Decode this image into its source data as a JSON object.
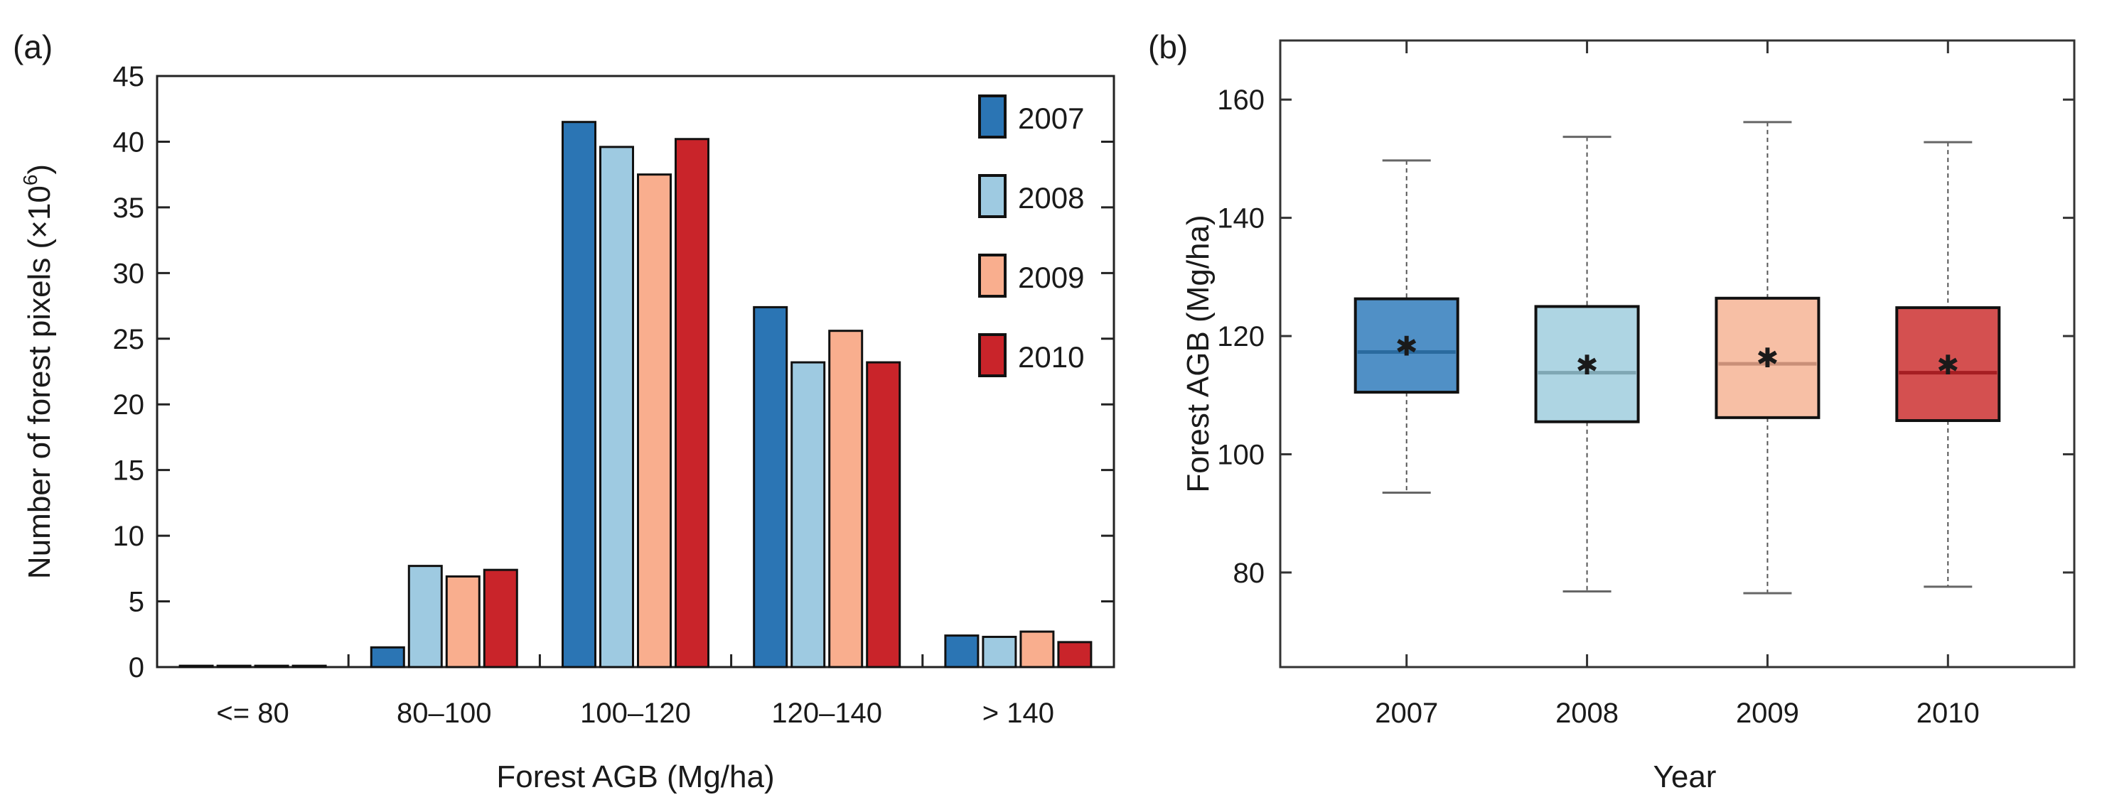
{
  "chart_data": [
    {
      "panel_label": "(a)",
      "type": "bar",
      "title": "",
      "xlabel": "Forest AGB (Mg/ha)",
      "ylabel": "Number of forest pixels (×10",
      "ylabel_superscript": "6",
      "ylabel_suffix": ")",
      "categories": [
        "<= 80",
        "80–100",
        "100–120",
        "120–140",
        "> 140"
      ],
      "ylim": [
        0,
        45
      ],
      "yticks": [
        0,
        5,
        10,
        15,
        20,
        25,
        30,
        35,
        40,
        45
      ],
      "legend_position": "top-right",
      "series": [
        {
          "name": "2007",
          "color": "#2b75b4",
          "values": [
            0.1,
            1.5,
            41.5,
            27.4,
            2.4
          ]
        },
        {
          "name": "2008",
          "color": "#9ecae1",
          "values": [
            0.1,
            7.7,
            39.6,
            23.2,
            2.3
          ]
        },
        {
          "name": "2009",
          "color": "#f9ae8e",
          "values": [
            0.1,
            6.9,
            37.5,
            25.6,
            2.7
          ]
        },
        {
          "name": "2010",
          "color": "#c9242a",
          "values": [
            0.1,
            7.4,
            40.2,
            23.2,
            1.9
          ]
        }
      ]
    },
    {
      "panel_label": "(b)",
      "type": "box",
      "title": "",
      "xlabel": "Year",
      "ylabel": "Forest AGB (Mg/ha)",
      "ylim": [
        64,
        170
      ],
      "yticks": [
        80,
        100,
        120,
        140,
        160
      ],
      "categories": [
        "2007",
        "2008",
        "2009",
        "2010"
      ],
      "boxes": [
        {
          "name": "2007",
          "fill": "#5090c6",
          "median_color": "#2a6a9e",
          "whisker_low": 93.5,
          "q1": 110.5,
          "median": 117.3,
          "q3": 126.3,
          "whisker_high": 149.7,
          "mean": 118.5
        },
        {
          "name": "2008",
          "fill": "#aed5e3",
          "median_color": "#7fa7b4",
          "whisker_low": 76.8,
          "q1": 105.5,
          "median": 113.8,
          "q3": 125.0,
          "whisker_high": 153.7,
          "mean": 115.3
        },
        {
          "name": "2009",
          "fill": "#f7bfa5",
          "median_color": "#c98f78",
          "whisker_low": 76.5,
          "q1": 106.2,
          "median": 115.3,
          "q3": 126.4,
          "whisker_high": 156.2,
          "mean": 116.5
        },
        {
          "name": "2010",
          "fill": "#d45050",
          "median_color": "#a51e22",
          "whisker_low": 77.6,
          "q1": 105.7,
          "median": 113.8,
          "q3": 124.8,
          "whisker_high": 152.8,
          "mean": 115.3
        }
      ]
    }
  ]
}
